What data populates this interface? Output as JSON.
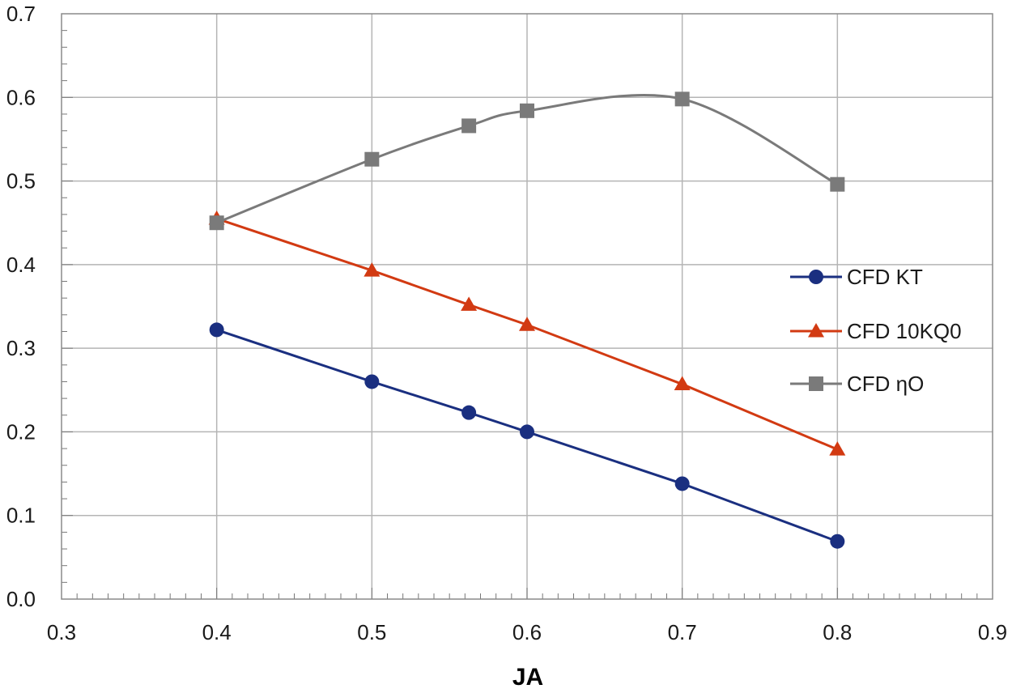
{
  "chart_data": {
    "type": "line",
    "title": "",
    "xlabel": "JA",
    "ylabel": "",
    "xlim": [
      0.3,
      0.9
    ],
    "ylim": [
      0.0,
      0.7
    ],
    "x_ticks": [
      "0.3",
      "0.4",
      "0.5",
      "0.6",
      "0.7",
      "0.8",
      "0.9"
    ],
    "y_ticks": [
      "0.0",
      "0.1",
      "0.2",
      "0.3",
      "0.4",
      "0.5",
      "0.6",
      "0.7"
    ],
    "grid": true,
    "legend_position": "right",
    "series": [
      {
        "name": "CFD KT",
        "color": "#1a2f80",
        "marker": "circle",
        "smooth": false,
        "x": [
          0.4,
          0.5,
          0.5625,
          0.6,
          0.7,
          0.8
        ],
        "y": [
          0.322,
          0.26,
          0.223,
          0.2,
          0.138,
          0.069
        ]
      },
      {
        "name": "CFD 10KQ0",
        "color": "#d23a12",
        "marker": "triangle",
        "smooth": false,
        "x": [
          0.4,
          0.5,
          0.5625,
          0.6,
          0.7,
          0.8
        ],
        "y": [
          0.455,
          0.393,
          0.352,
          0.328,
          0.257,
          0.179
        ]
      },
      {
        "name": "CFD ηO",
        "color": "#7a7a7a",
        "marker": "square",
        "smooth": true,
        "x": [
          0.4,
          0.5,
          0.5625,
          0.6,
          0.7,
          0.8
        ],
        "y": [
          0.45,
          0.526,
          0.566,
          0.584,
          0.598,
          0.496
        ]
      }
    ]
  }
}
